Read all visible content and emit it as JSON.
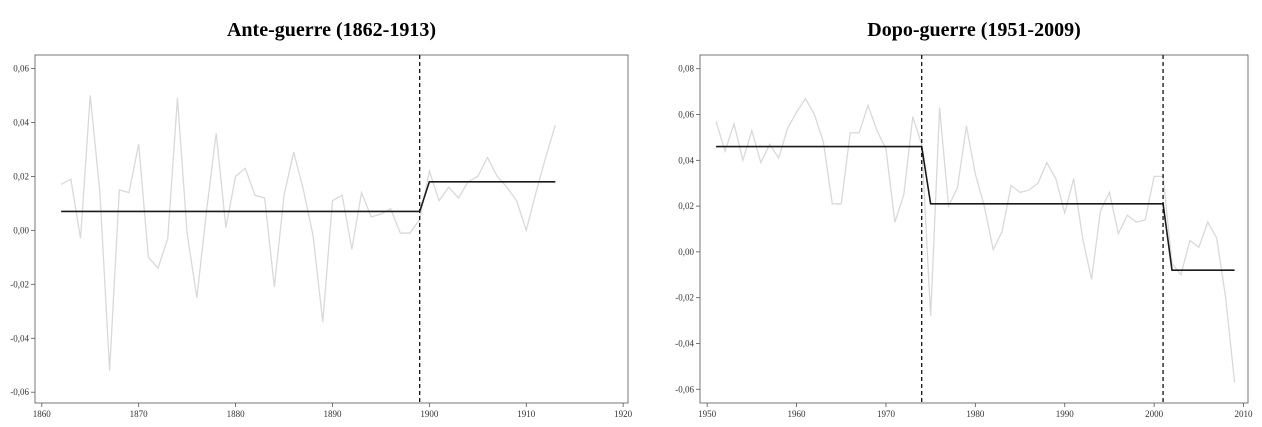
{
  "chart_data": [
    {
      "type": "line",
      "title": "Ante-guerre (1862-1913)",
      "x": [
        1862,
        1863,
        1864,
        1865,
        1866,
        1867,
        1868,
        1869,
        1870,
        1871,
        1872,
        1873,
        1874,
        1875,
        1876,
        1877,
        1878,
        1879,
        1880,
        1881,
        1882,
        1883,
        1884,
        1885,
        1886,
        1887,
        1888,
        1889,
        1890,
        1891,
        1892,
        1893,
        1894,
        1895,
        1896,
        1897,
        1898,
        1899,
        1900,
        1901,
        1902,
        1903,
        1904,
        1905,
        1906,
        1907,
        1908,
        1909,
        1910,
        1911,
        1912,
        1913
      ],
      "series": [
        {
          "color": "#d9d9d9",
          "values": [
            0.017,
            0.019,
            -0.003,
            0.05,
            0.014,
            -0.052,
            0.015,
            0.014,
            0.032,
            -0.01,
            -0.014,
            -0.003,
            0.049,
            -0.001,
            -0.025,
            0.007,
            0.036,
            0.001,
            0.02,
            0.023,
            0.013,
            0.012,
            -0.021,
            0.013,
            0.029,
            0.015,
            -0.002,
            -0.034,
            0.011,
            0.013,
            -0.007,
            0.014,
            0.005,
            0.006,
            0.008,
            -0.001,
            -0.001,
            0.004,
            0.022,
            0.011,
            0.016,
            0.012,
            0.018,
            0.02,
            0.027,
            0.02,
            0.016,
            0.011,
            0.0,
            0.014,
            0.027,
            0.039
          ]
        },
        {
          "color": "#1a1a1a",
          "values": [
            0.007,
            0.007,
            0.007,
            0.007,
            0.007,
            0.007,
            0.007,
            0.007,
            0.007,
            0.007,
            0.007,
            0.007,
            0.007,
            0.007,
            0.007,
            0.007,
            0.007,
            0.007,
            0.007,
            0.007,
            0.007,
            0.007,
            0.007,
            0.007,
            0.007,
            0.007,
            0.007,
            0.007,
            0.007,
            0.007,
            0.007,
            0.007,
            0.007,
            0.007,
            0.007,
            0.007,
            0.007,
            0.007,
            0.018,
            0.018,
            0.018,
            0.018,
            0.018,
            0.018,
            0.018,
            0.018,
            0.018,
            0.018,
            0.018,
            0.018,
            0.018,
            0.018
          ]
        }
      ],
      "breaks": [
        1899
      ],
      "xlim": [
        1859.3,
        1920.5
      ],
      "xticks": [
        1860,
        1870,
        1880,
        1890,
        1900,
        1910,
        1920
      ],
      "ylim": [
        -0.064,
        0.065
      ],
      "yticks": [
        {
          "value": -0.06,
          "label": "-0,06"
        },
        {
          "value": -0.04,
          "label": "-0,04"
        },
        {
          "value": -0.02,
          "label": "-0,02"
        },
        {
          "value": 0,
          "label": "0,00"
        },
        {
          "value": 0.02,
          "label": "0,02"
        },
        {
          "value": 0.04,
          "label": "0,04"
        },
        {
          "value": 0.06,
          "label": "0,06"
        }
      ]
    },
    {
      "type": "line",
      "title": "Dopo-guerre (1951-2009)",
      "x": [
        1951,
        1952,
        1953,
        1954,
        1955,
        1956,
        1957,
        1958,
        1959,
        1960,
        1961,
        1962,
        1963,
        1964,
        1965,
        1966,
        1967,
        1968,
        1969,
        1970,
        1971,
        1972,
        1973,
        1974,
        1975,
        1976,
        1977,
        1978,
        1979,
        1980,
        1981,
        1982,
        1983,
        1984,
        1985,
        1986,
        1987,
        1988,
        1989,
        1990,
        1991,
        1992,
        1993,
        1994,
        1995,
        1996,
        1997,
        1998,
        1999,
        2000,
        2001,
        2002,
        2003,
        2004,
        2005,
        2006,
        2007,
        2008,
        2009
      ],
      "series": [
        {
          "color": "#d9d9d9",
          "values": [
            0.057,
            0.044,
            0.056,
            0.04,
            0.053,
            0.039,
            0.047,
            0.041,
            0.054,
            0.061,
            0.067,
            0.06,
            0.048,
            0.021,
            0.021,
            0.052,
            0.052,
            0.064,
            0.053,
            0.045,
            0.013,
            0.025,
            0.059,
            0.047,
            -0.028,
            0.063,
            0.02,
            0.028,
            0.055,
            0.034,
            0.02,
            0.001,
            0.009,
            0.029,
            0.026,
            0.027,
            0.03,
            0.039,
            0.032,
            0.017,
            0.032,
            0.006,
            -0.012,
            0.018,
            0.026,
            0.008,
            0.016,
            0.013,
            0.014,
            0.033,
            0.033,
            -0.005,
            -0.01,
            0.005,
            0.002,
            0.013,
            0.006,
            -0.02,
            -0.057
          ]
        },
        {
          "color": "#1a1a1a",
          "values": [
            0.046,
            0.046,
            0.046,
            0.046,
            0.046,
            0.046,
            0.046,
            0.046,
            0.046,
            0.046,
            0.046,
            0.046,
            0.046,
            0.046,
            0.046,
            0.046,
            0.046,
            0.046,
            0.046,
            0.046,
            0.046,
            0.046,
            0.046,
            0.046,
            0.021,
            0.021,
            0.021,
            0.021,
            0.021,
            0.021,
            0.021,
            0.021,
            0.021,
            0.021,
            0.021,
            0.021,
            0.021,
            0.021,
            0.021,
            0.021,
            0.021,
            0.021,
            0.021,
            0.021,
            0.021,
            0.021,
            0.021,
            0.021,
            0.021,
            0.021,
            0.021,
            -0.008,
            -0.008,
            -0.008,
            -0.008,
            -0.008,
            -0.008,
            -0.008,
            -0.008
          ]
        }
      ],
      "breaks": [
        1974,
        2001
      ],
      "xlim": [
        1949.2,
        2010.5
      ],
      "xticks": [
        1950,
        1960,
        1970,
        1980,
        1990,
        2000,
        2010
      ],
      "ylim": [
        -0.066,
        0.086
      ],
      "yticks": [
        {
          "value": -0.06,
          "label": "-0,06"
        },
        {
          "value": -0.04,
          "label": "-0,04"
        },
        {
          "value": -0.02,
          "label": "-0,02"
        },
        {
          "value": 0,
          "label": "0,00"
        },
        {
          "value": 0.02,
          "label": "0,02"
        },
        {
          "value": 0.04,
          "label": "0,04"
        },
        {
          "value": 0.06,
          "label": "0,06"
        },
        {
          "value": 0.08,
          "label": "0,08"
        }
      ]
    }
  ]
}
